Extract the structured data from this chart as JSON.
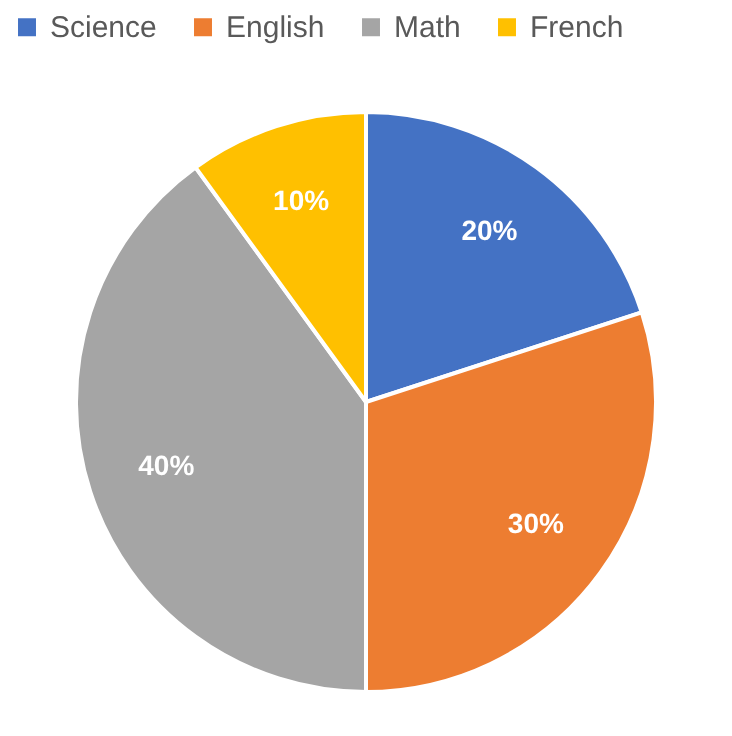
{
  "chart_data": {
    "type": "pie",
    "categories": [
      "Science",
      "English",
      "Math",
      "French"
    ],
    "values": [
      20,
      30,
      40,
      10
    ],
    "colors": [
      "#4472c4",
      "#ed7d31",
      "#a5a5a5",
      "#ffc000"
    ],
    "value_labels": [
      "20%",
      "30%",
      "40%",
      "10%"
    ],
    "legend": "top"
  }
}
